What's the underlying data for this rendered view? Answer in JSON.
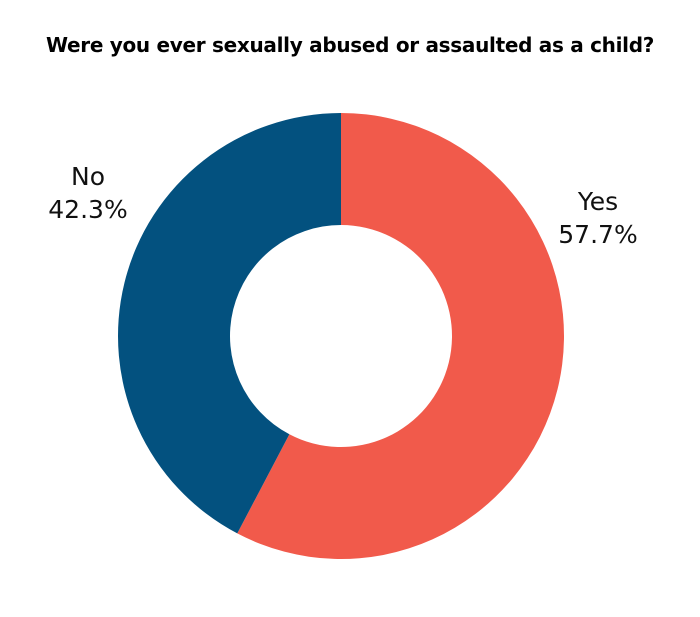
{
  "chart_data": {
    "type": "pie",
    "title": "Were you ever sexually abused or assaulted as a child?",
    "slices": [
      {
        "label": "Yes",
        "value": 57.7,
        "value_label": "57.7%",
        "color": "#f15a4b"
      },
      {
        "label": "No",
        "value": 42.3,
        "value_label": "42.3%",
        "color": "#03517f"
      }
    ],
    "donut": true,
    "legend": "none"
  }
}
